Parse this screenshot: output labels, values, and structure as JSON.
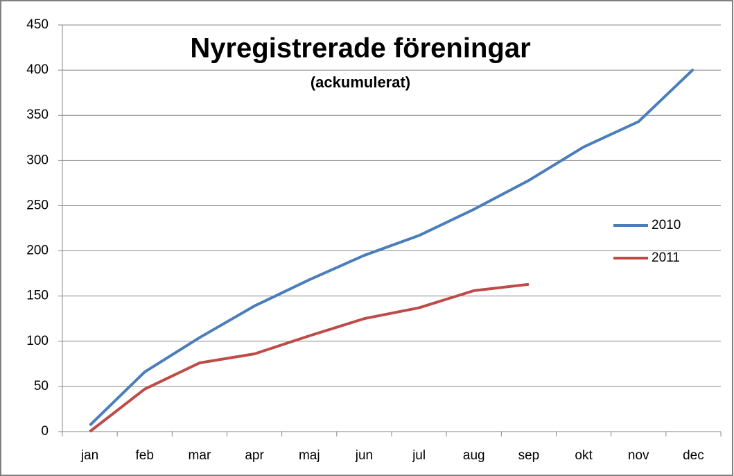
{
  "chart_data": {
    "type": "line",
    "title": "Nyregistrerade föreningar",
    "subtitle": "(ackumulerat)",
    "categories": [
      "jan",
      "feb",
      "mar",
      "apr",
      "maj",
      "jun",
      "jul",
      "aug",
      "sep",
      "okt",
      "nov",
      "dec"
    ],
    "series": [
      {
        "name": "2010",
        "color": "#4a7ebb",
        "values": [
          7,
          66,
          104,
          139,
          168,
          195,
          217,
          246,
          278,
          315,
          343,
          401
        ]
      },
      {
        "name": "2011",
        "color": "#be4b48",
        "values": [
          0,
          47,
          76,
          86,
          106,
          125,
          137,
          156,
          163,
          null,
          null,
          null
        ]
      }
    ],
    "ylim": [
      0,
      450
    ],
    "yticks": [
      0,
      50,
      100,
      150,
      200,
      250,
      300,
      350,
      400,
      450
    ],
    "grid": true,
    "legend": "right"
  }
}
